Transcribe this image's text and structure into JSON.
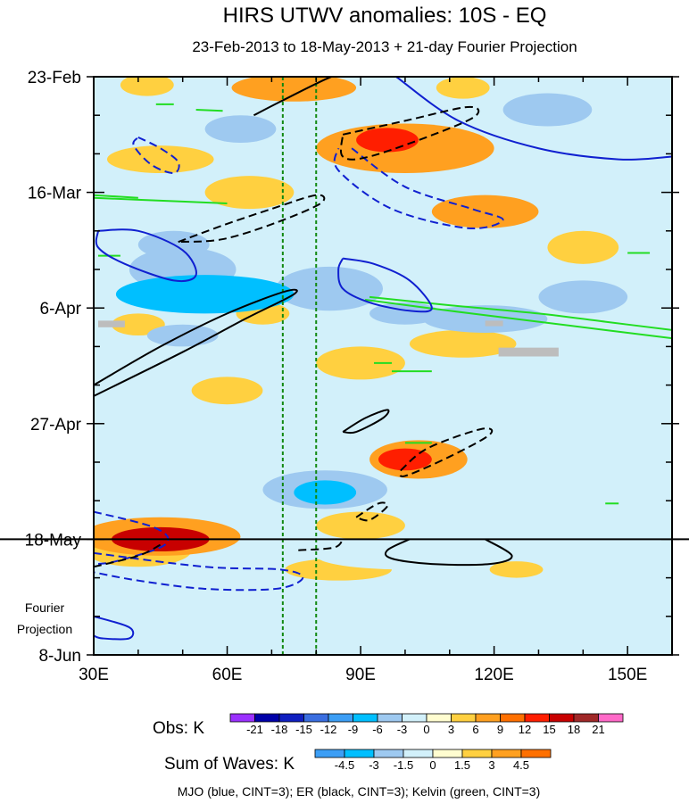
{
  "chart_data": {
    "type": "heatmap",
    "title": "HIRS UTWV anomalies: 10S - EQ",
    "subtitle": "23-Feb-2013 to 18-May-2013 + 21-day Fourier Projection",
    "x_range": [
      30,
      160
    ],
    "y_range_days": [
      0,
      105
    ],
    "x_ticks": [
      {
        "value": 30,
        "label": "30E"
      },
      {
        "value": 60,
        "label": "60E"
      },
      {
        "value": 90,
        "label": "90E"
      },
      {
        "value": 120,
        "label": "120E"
      },
      {
        "value": 150,
        "label": "150E"
      }
    ],
    "y_ticks": [
      {
        "day": 0,
        "label": "23-Feb"
      },
      {
        "day": 21,
        "label": "16-Mar"
      },
      {
        "day": 42,
        "label": "6-Apr"
      },
      {
        "day": 63,
        "label": "27-Apr"
      },
      {
        "day": 84,
        "label": "18-May"
      },
      {
        "day": 105,
        "label": "8-Jun"
      }
    ],
    "forecast_start_day": 84,
    "projection_label": [
      "Fourier",
      "Projection"
    ],
    "vertical_reference_lines": [
      72.5,
      80
    ],
    "obs_legend": {
      "label": "Obs: K",
      "levels": [
        "-21",
        "-18",
        "-15",
        "-12",
        "-9",
        "-6",
        "-3",
        "0",
        "3",
        "6",
        "9",
        "12",
        "15",
        "18",
        "21"
      ],
      "colors": [
        "#9b30ff",
        "#0000a8",
        "#0f1fc0",
        "#3a6ee0",
        "#3c9ef5",
        "#00bfff",
        "#9ec9f0",
        "#d2f0fa",
        "#fffdd0",
        "#ffd040",
        "#ffa020",
        "#ff7000",
        "#ff1e00",
        "#c80000",
        "#a02828",
        "#ff69c8"
      ]
    },
    "waves_legend": {
      "label": "Sum of Waves: K",
      "levels": [
        "-4.5",
        "-3",
        "-1.5",
        "0",
        "1.5",
        "3",
        "4.5"
      ],
      "colors": [
        "#3c9ef5",
        "#00bfff",
        "#9ec9f0",
        "#d2f0fa",
        "#fffdd0",
        "#ffd040",
        "#ffa020",
        "#ff7000"
      ]
    },
    "caption": "MJO (blue, CINT=3); ER (black, CINT=3); Kelvin (green, CINT=3)",
    "series": [
      {
        "name": "MJO",
        "color": "#1020d0"
      },
      {
        "name": "ER",
        "color": "#000000"
      },
      {
        "name": "Kelvin",
        "color": "#22dd22"
      }
    ],
    "anomaly_blobs": [
      {
        "lon": 96,
        "day": 11.5,
        "rlon": 7,
        "rday": 2.2,
        "value": 12
      },
      {
        "lon": 100,
        "day": 13,
        "rlon": 20,
        "rday": 4.5,
        "value": 6
      },
      {
        "lon": 118,
        "day": 24.5,
        "rlon": 12,
        "rday": 3,
        "value": 6
      },
      {
        "lon": 75,
        "day": 2,
        "rlon": 14,
        "rday": 2.5,
        "value": 6
      },
      {
        "lon": 45,
        "day": 15,
        "rlon": 12,
        "rday": 2.5,
        "value": 3
      },
      {
        "lon": 65,
        "day": 21,
        "rlon": 10,
        "rday": 3,
        "value": 3
      },
      {
        "lon": 42,
        "day": 1.5,
        "rlon": 6,
        "rday": 2,
        "value": 3
      },
      {
        "lon": 113,
        "day": 2,
        "rlon": 6,
        "rday": 2,
        "value": 3
      },
      {
        "lon": 45,
        "day": 84,
        "rlon": 11,
        "rday": 2.2,
        "value": 15
      },
      {
        "lon": 45,
        "day": 83.5,
        "rlon": 18,
        "rday": 3.5,
        "value": 6
      },
      {
        "lon": 40,
        "day": 86,
        "rlon": 12,
        "rday": 3,
        "value": 3
      },
      {
        "lon": 100,
        "day": 69.5,
        "rlon": 6,
        "rday": 2,
        "value": 12
      },
      {
        "lon": 103,
        "day": 69.5,
        "rlon": 11,
        "rday": 3.5,
        "value": 6
      },
      {
        "lon": 90,
        "day": 81.5,
        "rlon": 10,
        "rday": 2.5,
        "value": 3
      },
      {
        "lon": 40,
        "day": 45,
        "rlon": 6,
        "rday": 2,
        "value": 3
      },
      {
        "lon": 68,
        "day": 43,
        "rlon": 6,
        "rday": 2,
        "value": 3
      },
      {
        "lon": 85,
        "day": 89.5,
        "rlon": 12,
        "rday": 2,
        "value": 3
      },
      {
        "lon": 125,
        "day": 89.5,
        "rlon": 6,
        "rday": 1.5,
        "value": 3
      },
      {
        "lon": 113,
        "day": 48.5,
        "rlon": 12,
        "rday": 2.5,
        "value": 3
      },
      {
        "lon": 90,
        "day": 52,
        "rlon": 10,
        "rday": 3,
        "value": 3
      },
      {
        "lon": 140,
        "day": 31,
        "rlon": 8,
        "rday": 3,
        "value": 3
      },
      {
        "lon": 60,
        "day": 57,
        "rlon": 8,
        "rday": 2.5,
        "value": 3
      },
      {
        "lon": 55,
        "day": 39.5,
        "rlon": 20,
        "rday": 3.5,
        "value": -9
      },
      {
        "lon": 83,
        "day": 38.5,
        "rlon": 12,
        "rday": 4,
        "value": -6
      },
      {
        "lon": 50,
        "day": 35,
        "rlon": 12,
        "rday": 4,
        "value": -6
      },
      {
        "lon": 118,
        "day": 44,
        "rlon": 14,
        "rday": 2.5,
        "value": -6
      },
      {
        "lon": 50,
        "day": 47,
        "rlon": 8,
        "rday": 2,
        "value": -6
      },
      {
        "lon": 48,
        "day": 30.5,
        "rlon": 8,
        "rday": 2.5,
        "value": -6
      },
      {
        "lon": 45,
        "day": 10,
        "rlon": 8,
        "rday": 2,
        "value": -3
      },
      {
        "lon": 132,
        "day": 6,
        "rlon": 10,
        "rday": 3,
        "value": -6
      },
      {
        "lon": 63,
        "day": 9.5,
        "rlon": 8,
        "rday": 2.5,
        "value": -6
      },
      {
        "lon": 82,
        "day": 75.5,
        "rlon": 7,
        "rday": 2.2,
        "value": -9
      },
      {
        "lon": 82,
        "day": 75,
        "rlon": 14,
        "rday": 3.5,
        "value": -6
      },
      {
        "lon": 140,
        "day": 40,
        "rlon": 10,
        "rday": 3,
        "value": -6
      },
      {
        "lon": 110,
        "day": 59,
        "rlon": 14,
        "rday": 3,
        "value": -3
      },
      {
        "lon": 65,
        "day": 65,
        "rlon": 10,
        "rday": 3,
        "value": -3
      },
      {
        "lon": 40,
        "day": 70,
        "rlon": 10,
        "rday": 2.5,
        "value": -3
      },
      {
        "lon": 140,
        "day": 55,
        "rlon": 10,
        "rday": 3,
        "value": -3
      },
      {
        "lon": 100,
        "day": 43,
        "rlon": 8,
        "rday": 2,
        "value": -6
      },
      {
        "lon": 150,
        "day": 20,
        "rlon": 8,
        "rday": 4,
        "value": -3
      },
      {
        "lon": 100,
        "day": 87,
        "rlon": 20,
        "rday": 2.5,
        "value": -3
      },
      {
        "lon": 35,
        "day": 98,
        "rlon": 6,
        "rday": 4,
        "value": -3
      },
      {
        "lon": 125,
        "day": 77,
        "rlon": 10,
        "rday": 3,
        "value": -3
      }
    ],
    "missing_patches": [
      {
        "lon0": 31,
        "lon1": 37,
        "day0": 44.3,
        "day1": 45.5
      },
      {
        "lon0": 118,
        "lon1": 122,
        "day0": 44.3,
        "day1": 45.3
      },
      {
        "lon0": 121,
        "lon1": 134.5,
        "day0": 49.2,
        "day1": 50.8
      }
    ],
    "wave_contours": {
      "mjo": [
        {
          "style": "solid",
          "points": [
            [
              98,
              0
            ],
            [
              112,
              8
            ],
            [
              130,
              13
            ],
            [
              148,
              15
            ],
            [
              160,
              14.5
            ]
          ]
        },
        {
          "style": "dashed",
          "points": [
            [
              88,
              13
            ],
            [
              100,
              20
            ],
            [
              115,
              24
            ],
            [
              122,
              26
            ],
            [
              114,
              27.5
            ],
            [
              97,
              24
            ],
            [
              85,
              17
            ],
            [
              85,
              13
            ]
          ]
        },
        {
          "style": "dashed",
          "points": [
            [
              40,
              11
            ],
            [
              45,
              13
            ],
            [
              49,
              15.5
            ],
            [
              48,
              17.5
            ],
            [
              43,
              16
            ],
            [
              39,
              12.5
            ],
            [
              40,
              11
            ]
          ]
        },
        {
          "style": "solid",
          "points": [
            [
              31,
              28
            ],
            [
              40,
              28
            ],
            [
              50,
              31.5
            ],
            [
              53,
              36
            ],
            [
              48,
              37
            ],
            [
              37,
              34
            ],
            [
              31,
              31
            ],
            [
              31,
              28
            ]
          ]
        },
        {
          "style": "solid",
          "points": [
            [
              86,
              33
            ],
            [
              93,
              34
            ],
            [
              101,
              37
            ],
            [
              106,
              42
            ],
            [
              101,
              42.5
            ],
            [
              92,
              41
            ],
            [
              86,
              38.5
            ],
            [
              85,
              35
            ],
            [
              86,
              33
            ]
          ]
        },
        {
          "style": "dashed",
          "points": [
            [
              30,
              79
            ],
            [
              44,
              82
            ],
            [
              46,
              85
            ],
            [
              35,
              88
            ],
            [
              30,
              88.5
            ]
          ]
        },
        {
          "style": "dashed",
          "points": [
            [
              30,
              86.5
            ],
            [
              55,
              89
            ],
            [
              72,
              89.5
            ],
            [
              77,
              91
            ],
            [
              71,
              93
            ],
            [
              55,
              93
            ],
            [
              40,
              91.5
            ],
            [
              30,
              90
            ]
          ]
        },
        {
          "style": "solid",
          "points": [
            [
              30,
              98
            ],
            [
              38,
              100
            ],
            [
              38,
              102
            ],
            [
              32,
              102
            ],
            [
              30,
              101.5
            ]
          ]
        }
      ],
      "er": [
        {
          "style": "solid",
          "points": [
            [
              66,
              7
            ],
            [
              72,
              4.5
            ],
            [
              82,
              0.5
            ],
            [
              87,
              -1
            ]
          ]
        },
        {
          "style": "dashed",
          "points": [
            [
              86,
              10.5
            ],
            [
              100,
              8
            ],
            [
              114,
              5.5
            ],
            [
              116,
              7
            ],
            [
              108,
              10
            ],
            [
              92,
              14.5
            ],
            [
              86,
              14.5
            ],
            [
              86,
              10.5
            ]
          ]
        },
        {
          "style": "dashed",
          "points": [
            [
              49,
              30
            ],
            [
              59,
              27
            ],
            [
              70,
              24
            ],
            [
              80,
              21.5
            ],
            [
              81,
              23
            ],
            [
              71,
              26.5
            ],
            [
              59,
              29.5
            ],
            [
              49,
              30
            ]
          ]
        },
        {
          "style": "solid",
          "points": [
            [
              30,
              56
            ],
            [
              45,
              49
            ],
            [
              60,
              43
            ],
            [
              73,
              39
            ],
            [
              75,
              39.5
            ],
            [
              64,
              44
            ],
            [
              50,
              50
            ],
            [
              30,
              58
            ]
          ]
        },
        {
          "style": "solid",
          "points": [
            [
              86,
              64.5
            ],
            [
              91,
              62
            ],
            [
              96,
              60.5
            ],
            [
              95,
              62
            ],
            [
              89,
              64.5
            ],
            [
              86,
              64.5
            ]
          ]
        },
        {
          "style": "dashed",
          "points": [
            [
              99,
              71.5
            ],
            [
              105,
              67.5
            ],
            [
              117,
              64
            ],
            [
              119,
              65
            ],
            [
              110,
              69
            ],
            [
              100,
              72.5
            ],
            [
              99,
              71.5
            ]
          ]
        },
        {
          "style": "dashed",
          "points": [
            [
              89,
              80
            ],
            [
              94,
              77.5
            ],
            [
              96,
              78
            ],
            [
              92,
              80.5
            ],
            [
              89,
              80
            ]
          ]
        },
        {
          "style": "solid",
          "points": [
            [
              118,
              84
            ],
            [
              124,
              87
            ],
            [
              119,
              88.5
            ],
            [
              106,
              88.5
            ],
            [
              97,
              87.5
            ],
            [
              96,
              86
            ],
            [
              101,
              84
            ]
          ]
        },
        {
          "style": "dashed",
          "points": [
            [
              30,
              89
            ],
            [
              40,
              87
            ],
            [
              45,
              85
            ]
          ]
        },
        {
          "style": "dashed",
          "points": [
            [
              76,
              86
            ],
            [
              84,
              85.5
            ],
            [
              86,
              84
            ]
          ]
        }
      ],
      "kelvin": [
        {
          "style": "solid",
          "points": [
            [
              30,
              22
            ],
            [
              45,
              22.5
            ],
            [
              60,
              23
            ]
          ]
        },
        {
          "style": "solid",
          "points": [
            [
              30,
              21.5
            ],
            [
              40,
              22
            ]
          ]
        },
        {
          "style": "solid",
          "points": [
            [
              92,
              40
            ],
            [
              110,
              41.5
            ],
            [
              130,
              43
            ],
            [
              145,
              44.5
            ],
            [
              160,
              46
            ]
          ]
        },
        {
          "style": "solid",
          "points": [
            [
              91,
              40.5
            ],
            [
              110,
              42.5
            ],
            [
              130,
              44.5
            ],
            [
              160,
              47.5
            ]
          ]
        },
        {
          "style": "solid",
          "points": [
            [
              44,
              5
            ],
            [
              48,
              5
            ]
          ]
        },
        {
          "style": "solid",
          "points": [
            [
              53,
              6
            ],
            [
              59,
              6.2
            ]
          ]
        },
        {
          "style": "solid",
          "points": [
            [
              31,
              32.5
            ],
            [
              36,
              32.5
            ]
          ]
        },
        {
          "style": "solid",
          "points": [
            [
              97,
              53.5
            ],
            [
              106,
              53.5
            ]
          ]
        },
        {
          "style": "solid",
          "points": [
            [
              100,
              66.5
            ],
            [
              106,
              66.5
            ]
          ]
        },
        {
          "style": "solid",
          "points": [
            [
              93,
              52
            ],
            [
              97,
              52
            ]
          ]
        },
        {
          "style": "solid",
          "points": [
            [
              145,
              77.5
            ],
            [
              148,
              77.5
            ]
          ]
        },
        {
          "style": "solid",
          "points": [
            [
              150,
              32
            ],
            [
              155,
              32
            ]
          ]
        }
      ]
    }
  }
}
